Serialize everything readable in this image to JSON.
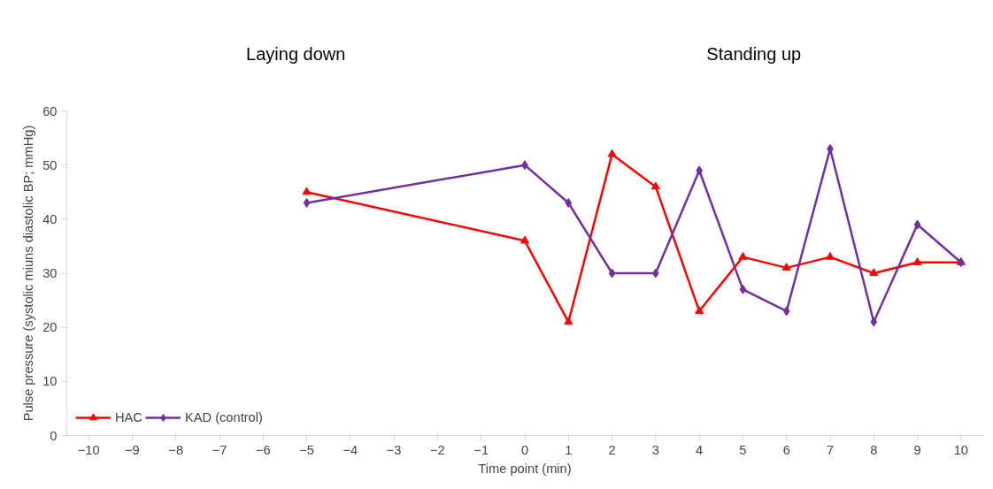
{
  "chart_data": {
    "type": "line",
    "xlabel": "Time point (min)",
    "ylabel": "Pulse pressure (systolic miuns diastolic BP; mmHg)",
    "x": [
      -5,
      0,
      1,
      2,
      3,
      4,
      5,
      6,
      7,
      8,
      9,
      10
    ],
    "series": [
      {
        "name": "HAC",
        "color": "#ff0000",
        "marker": "triangle",
        "values": [
          45,
          36,
          21,
          52,
          46,
          23,
          33,
          31,
          33,
          30,
          32,
          32
        ]
      },
      {
        "name": "KAD (control)",
        "color": "#7030a0",
        "marker": "diamond",
        "values": [
          43,
          50,
          43,
          30,
          30,
          49,
          27,
          23,
          53,
          21,
          39,
          32
        ]
      }
    ],
    "xlim": [
      -10.5,
      10.5
    ],
    "xticks": [
      -10,
      -9,
      -8,
      -7,
      -6,
      -5,
      -4,
      -3,
      -2,
      -1,
      0,
      1,
      2,
      3,
      4,
      5,
      6,
      7,
      8,
      9,
      10
    ],
    "ylim": [
      0,
      60
    ],
    "yticks": [
      0,
      10,
      20,
      30,
      40,
      50,
      60
    ],
    "grid": false,
    "legend": "bottom left",
    "line_style": "solid",
    "annotations": [
      "Laying down",
      "Standing up"
    ]
  }
}
